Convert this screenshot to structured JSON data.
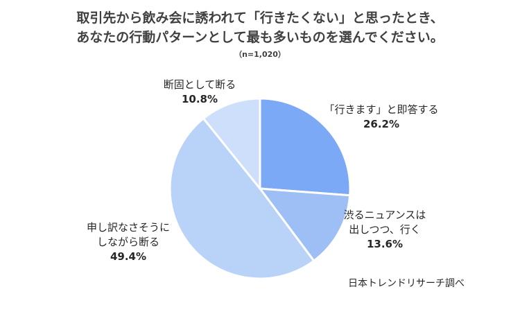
{
  "header": {
    "title_line1": "取引先から飲み会に誘われて「行きたくない」と思ったとき、",
    "title_line2": "あなたの行動パターンとして最も多いものを選んでください。",
    "sample": "（n=1,020）"
  },
  "chart_data": {
    "type": "pie",
    "start_angle_deg": 0,
    "direction": "clockwise",
    "slices": [
      {
        "label_lines": [
          "「行きます」と即答する"
        ],
        "value": 26.2,
        "value_label": "26.2%",
        "color": "#7ba9f5"
      },
      {
        "label_lines": [
          "渋るニュアンスは",
          "出しつつ、行く"
        ],
        "value": 13.6,
        "value_label": "13.6%",
        "color": "#9ebef6"
      },
      {
        "label_lines": [
          "申し訳なさそうに",
          "しながら断る"
        ],
        "value": 49.4,
        "value_label": "49.4%",
        "color": "#b9d2f8"
      },
      {
        "label_lines": [
          "断固として断る"
        ],
        "value": 10.8,
        "value_label": "10.8%",
        "color": "#cddffa"
      }
    ]
  },
  "footer": {
    "source": "日本トレンドリサーチ調べ"
  }
}
